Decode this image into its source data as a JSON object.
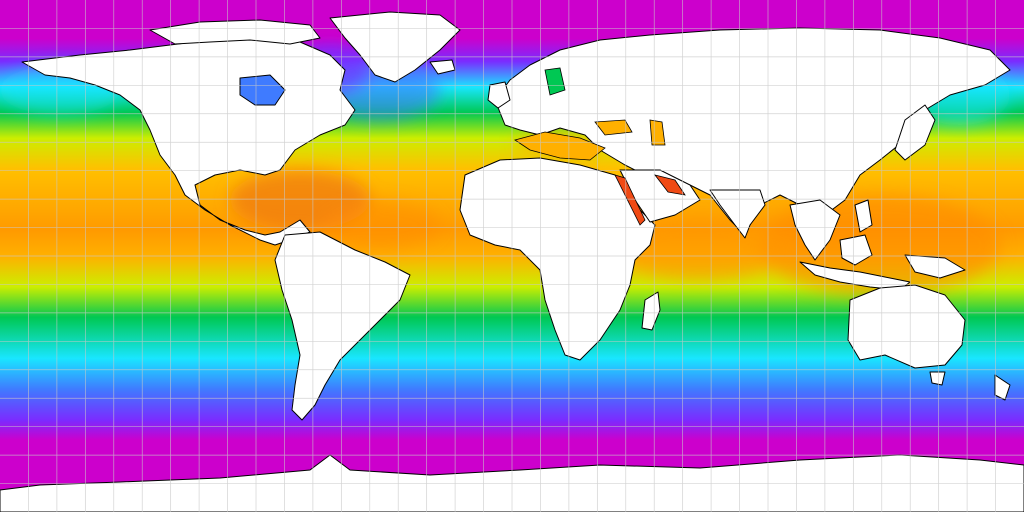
{
  "map": {
    "projection": "equirectangular",
    "variable": "sea-surface-temperature",
    "grid": true,
    "grid_spacing_deg": 10,
    "land_color": "#ffffff",
    "coastline_color": "#000000",
    "grid_color": "#c8c8c8",
    "ocean_color_scale": [
      {
        "band": "polar",
        "color": "#cc00cc"
      },
      {
        "band": "sub-polar",
        "color": "#7a2cff"
      },
      {
        "band": "cold",
        "color": "#3f7bff"
      },
      {
        "band": "cool",
        "color": "#19e6ff"
      },
      {
        "band": "mild",
        "color": "#00c853"
      },
      {
        "band": "temperate",
        "color": "#ccee00"
      },
      {
        "band": "warm",
        "color": "#ffc000"
      },
      {
        "band": "tropical",
        "color": "#ff9a00"
      },
      {
        "band": "hot",
        "color": "#f04a14"
      }
    ]
  }
}
